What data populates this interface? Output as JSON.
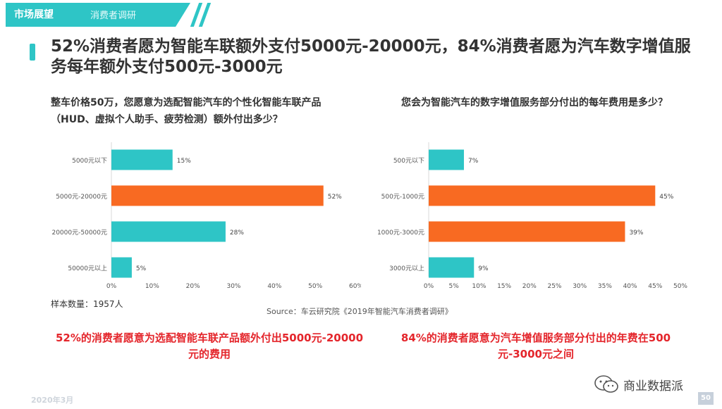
{
  "header": {
    "section": "市场展望",
    "subsection": "消费者调研"
  },
  "title": "52%消费者愿为智能车联额外支付5000元-20000元，84%消费者愿为汽车数字增值服务每年额外支付500元-3000元",
  "chart_data": [
    {
      "type": "bar",
      "orientation": "horizontal",
      "title": "整车价格50万，您愿意为选配智能汽车的个性化智能车联产品（HUD、虚拟个人助手、疲劳检测）额外付出多少？",
      "categories": [
        "5000元以下",
        "5000元-20000元",
        "20000元-50000元",
        "50000元以上"
      ],
      "values": [
        15,
        52,
        28,
        5
      ],
      "value_labels": [
        "15%",
        "52%",
        "28%",
        "5%"
      ],
      "xticks": [
        "0%",
        "10%",
        "20%",
        "30%",
        "40%",
        "50%",
        "60%"
      ],
      "xlim": [
        0,
        60
      ],
      "colors": [
        "#2ec5c6",
        "#f86a22",
        "#2ec5c6",
        "#2ec5c6"
      ]
    },
    {
      "type": "bar",
      "orientation": "horizontal",
      "title": "您会为智能汽车的数字增值服务部分付出的每年费用是多少？",
      "categories": [
        "500元以下",
        "500元-1000元",
        "1000元-3000元",
        "3000元以上"
      ],
      "values": [
        7,
        45,
        39,
        9
      ],
      "value_labels": [
        "7%",
        "45%",
        "39%",
        "9%"
      ],
      "xticks": [
        "0%",
        "5%",
        "10%",
        "15%",
        "20%",
        "25%",
        "30%",
        "35%",
        "40%",
        "45%",
        "50%"
      ],
      "xlim": [
        0,
        50
      ],
      "colors": [
        "#2ec5c6",
        "#f86a22",
        "#f86a22",
        "#2ec5c6"
      ]
    }
  ],
  "sample": "样本数量：1957人",
  "source": "Source：车云研究院《2019年智能汽车消费者调研》",
  "conclusions": {
    "left": "52%的消费者愿意为选配智能车联产品额外付出5000元-20000元的费用",
    "right": "84%的消费者愿意为汽车增值服务部分付出的年费在500元-3000元之间"
  },
  "footer": {
    "date": "2020年3月",
    "page": "50",
    "wechat": "商业数据派"
  }
}
